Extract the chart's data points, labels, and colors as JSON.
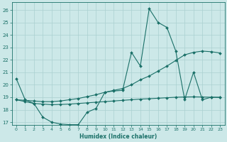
{
  "xlabel": "Humidex (Indice chaleur)",
  "xlim": [
    -0.5,
    23.5
  ],
  "ylim": [
    16.8,
    26.6
  ],
  "yticks": [
    17,
    18,
    19,
    20,
    21,
    22,
    23,
    24,
    25,
    26
  ],
  "xticks": [
    0,
    1,
    2,
    3,
    4,
    5,
    6,
    7,
    8,
    9,
    10,
    11,
    12,
    13,
    14,
    15,
    16,
    17,
    18,
    19,
    20,
    21,
    22,
    23
  ],
  "bg_color": "#cce8e8",
  "grid_color": "#aad0d0",
  "line_color": "#1a7068",
  "lines": [
    {
      "x": [
        0,
        1,
        2,
        3,
        4,
        5,
        6,
        7,
        8,
        9,
        10,
        11,
        12,
        13,
        14,
        15,
        16,
        17,
        18,
        19,
        20,
        21,
        22,
        23
      ],
      "y": [
        20.5,
        18.8,
        18.5,
        17.4,
        17.0,
        16.85,
        16.8,
        16.8,
        17.8,
        18.1,
        19.4,
        19.5,
        19.55,
        22.6,
        21.5,
        26.1,
        25.0,
        24.6,
        22.7,
        18.8,
        21.0,
        18.8,
        19.0,
        19.0
      ]
    },
    {
      "x": [
        0,
        1,
        2,
        3,
        4,
        5,
        6,
        7,
        8,
        9,
        10,
        11,
        12,
        13,
        14,
        15,
        16,
        17,
        18,
        19,
        20,
        21,
        22,
        23
      ],
      "y": [
        18.8,
        18.75,
        18.7,
        18.65,
        18.65,
        18.7,
        18.8,
        18.9,
        19.05,
        19.2,
        19.4,
        19.55,
        19.7,
        20.0,
        20.4,
        20.7,
        21.1,
        21.5,
        21.95,
        22.4,
        22.6,
        22.7,
        22.65,
        22.55
      ]
    },
    {
      "x": [
        0,
        1,
        2,
        3,
        4,
        5,
        6,
        7,
        8,
        9,
        10,
        11,
        12,
        13,
        14,
        15,
        16,
        17,
        18,
        19,
        20,
        21,
        22,
        23
      ],
      "y": [
        18.8,
        18.65,
        18.5,
        18.45,
        18.4,
        18.42,
        18.45,
        18.5,
        18.55,
        18.6,
        18.65,
        18.7,
        18.75,
        18.8,
        18.85,
        18.88,
        18.92,
        18.96,
        19.0,
        19.02,
        19.03,
        19.02,
        19.0,
        18.98
      ]
    }
  ]
}
